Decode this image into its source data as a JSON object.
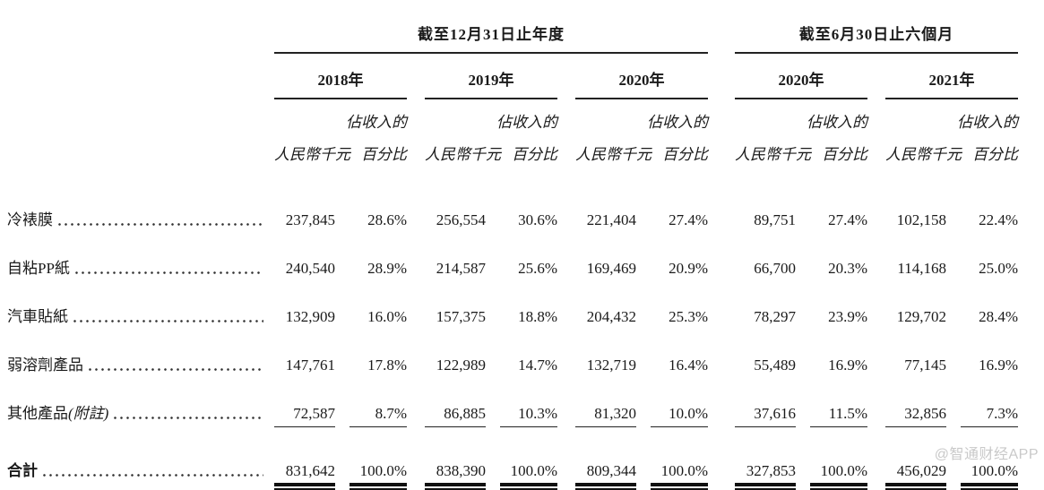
{
  "doc": {
    "sections": [
      {
        "title": "截至12月31日止年度",
        "years": [
          "2018年",
          "2019年",
          "2020年"
        ]
      },
      {
        "title": "截至6月30日止六個月",
        "years": [
          "2020年",
          "2021年"
        ]
      }
    ],
    "col_headers": {
      "pct_top": "佔收入的",
      "amount": "人民幣千元",
      "pct_bottom": "百分比"
    },
    "rows": [
      {
        "label": "冷裱膜",
        "note": "",
        "values": [
          "237,845",
          "28.6%",
          "256,554",
          "30.6%",
          "221,404",
          "27.4%",
          "89,751",
          "27.4%",
          "102,158",
          "22.4%"
        ]
      },
      {
        "label": "自粘PP紙",
        "note": "",
        "values": [
          "240,540",
          "28.9%",
          "214,587",
          "25.6%",
          "169,469",
          "20.9%",
          "66,700",
          "20.3%",
          "114,168",
          "25.0%"
        ]
      },
      {
        "label": "汽車貼紙",
        "note": "",
        "values": [
          "132,909",
          "16.0%",
          "157,375",
          "18.8%",
          "204,432",
          "25.3%",
          "78,297",
          "23.9%",
          "129,702",
          "28.4%"
        ]
      },
      {
        "label": "弱溶劑產品",
        "note": "",
        "values": [
          "147,761",
          "17.8%",
          "122,989",
          "14.7%",
          "132,719",
          "16.4%",
          "55,489",
          "16.9%",
          "77,145",
          "16.9%"
        ]
      },
      {
        "label": "其他產品",
        "note": "(附註)",
        "values": [
          "72,587",
          "8.7%",
          "86,885",
          "10.3%",
          "81,320",
          "10.0%",
          "37,616",
          "11.5%",
          "32,856",
          "7.3%"
        ]
      }
    ],
    "total": {
      "label": "合計",
      "values": [
        "831,642",
        "100.0%",
        "838,390",
        "100.0%",
        "809,344",
        "100.0%",
        "327,853",
        "100.0%",
        "456,029",
        "100.0%"
      ]
    },
    "watermark": "@智通财经APP"
  }
}
